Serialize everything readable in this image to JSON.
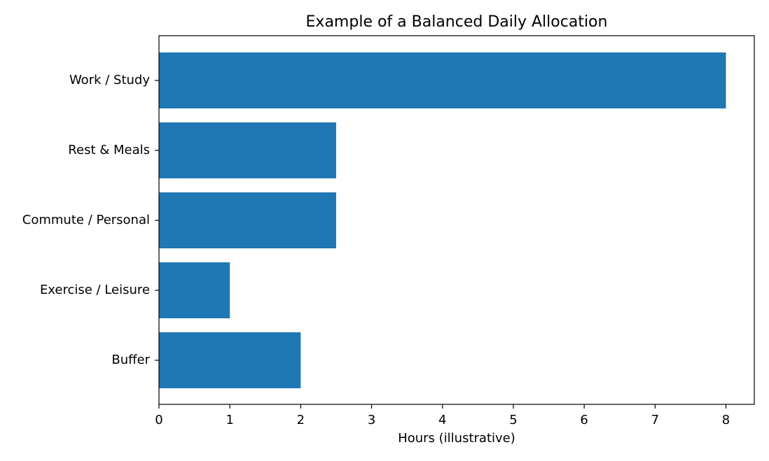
{
  "chart_data": {
    "type": "barh",
    "title": "Example of a Balanced Daily Allocation",
    "xlabel": "Hours (illustrative)",
    "categories": [
      "Work / Study",
      "Rest & Meals",
      "Commute / Personal",
      "Exercise / Leisure",
      "Buffer"
    ],
    "values": [
      8,
      2.5,
      2.5,
      1,
      2
    ],
    "color": "#1f77b4",
    "xlim": [
      0,
      8.4
    ],
    "xticks": [
      0,
      1,
      2,
      3,
      4,
      5,
      6,
      7,
      8
    ],
    "grid": false
  }
}
